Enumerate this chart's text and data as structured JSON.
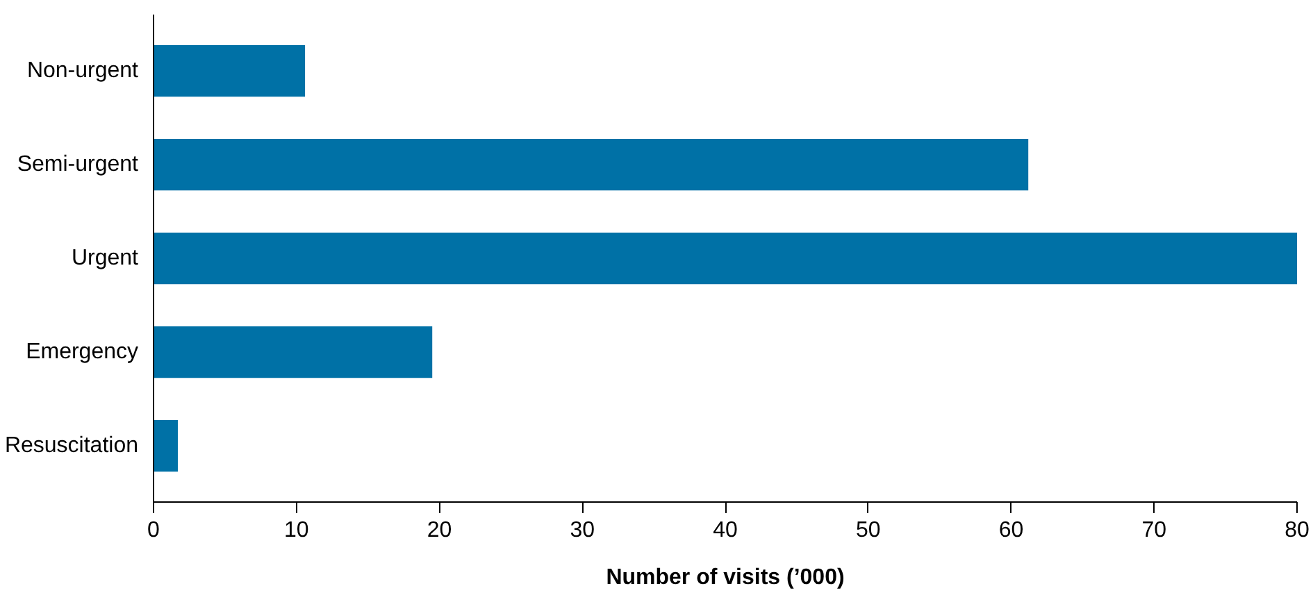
{
  "chart_data": {
    "type": "bar",
    "orientation": "horizontal",
    "categories": [
      "Non-urgent",
      "Semi-urgent",
      "Urgent",
      "Emergency",
      "Resuscitation"
    ],
    "values": [
      10.6,
      61.2,
      80,
      19.5,
      1.7
    ],
    "color": "#0071a6",
    "xlim": [
      0,
      80
    ],
    "xticks": [
      0,
      10,
      20,
      30,
      40,
      50,
      60,
      70,
      80
    ],
    "xlabel": "Number of visits (’000)",
    "grid": false
  }
}
